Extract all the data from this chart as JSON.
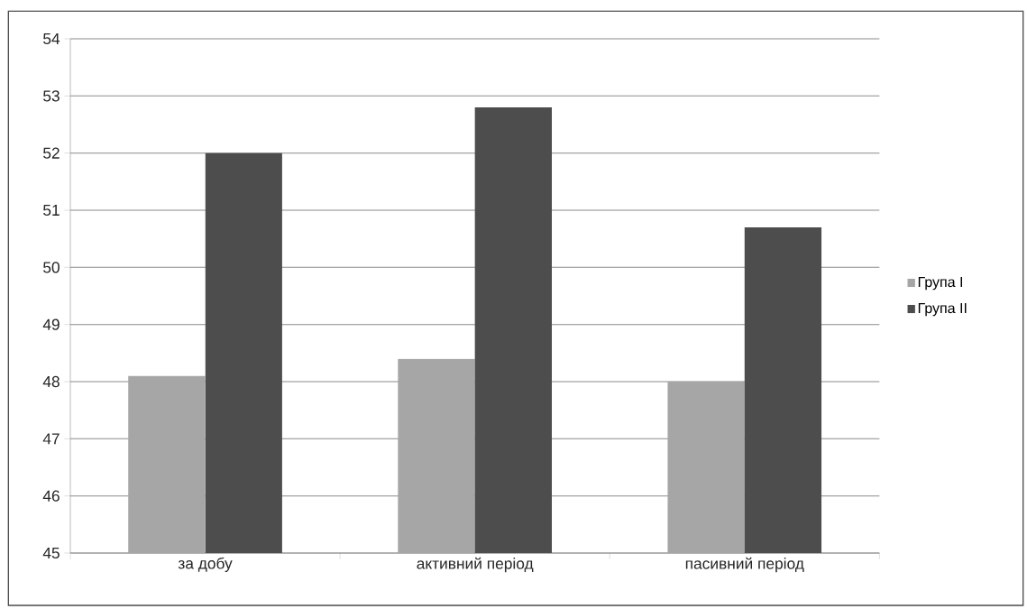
{
  "chart_data": {
    "type": "bar",
    "categories": [
      "за добу",
      "активний період",
      "пасивний період"
    ],
    "series": [
      {
        "name": "Група I",
        "color": "#a6a6a6",
        "values": [
          48.1,
          48.4,
          48.0
        ]
      },
      {
        "name": "Група II",
        "color": "#4d4d4d",
        "values": [
          52.0,
          52.8,
          50.7
        ]
      }
    ],
    "ylim": [
      45,
      54
    ],
    "yticks": [
      45,
      46,
      47,
      48,
      49,
      50,
      51,
      52,
      53,
      54
    ],
    "grid": "y",
    "legend": "right"
  }
}
